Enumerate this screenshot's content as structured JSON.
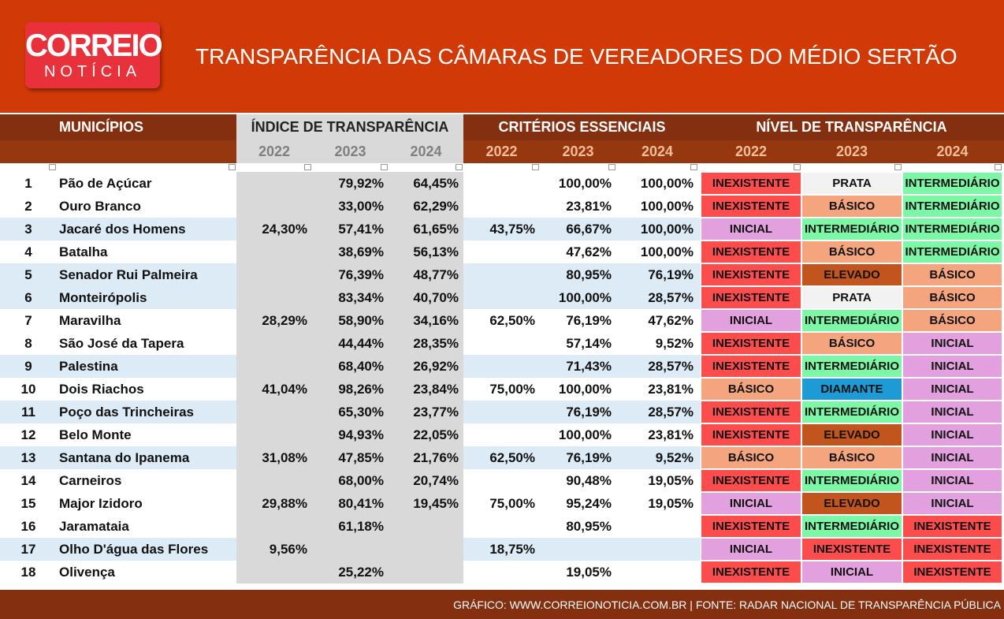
{
  "header": {
    "logo_top": "CORREIO",
    "logo_bottom": "NOTÍCIA",
    "title": "TRANSPARÊNCIA DAS CÂMARAS DE VEREADORES DO MÉDIO SERTÃO"
  },
  "table": {
    "groups": [
      "MUNICÍPIOS",
      "ÍNDICE DE TRANSPARÊNCIA",
      "CRITÉRIOS ESSENCIAIS",
      "NÍVEL DE TRANSPARÊNCIA"
    ],
    "years": [
      [
        "2022",
        "2023",
        "2024"
      ],
      [
        "2022",
        "2023",
        "2024"
      ],
      [
        "2022",
        "2023",
        "2024"
      ]
    ],
    "level_colors": {
      "INEXISTENTE": "#fc4c4c",
      "PRATA": "#f2f2f2",
      "INTERMEDIÁRIO": "#7cf7a6",
      "BÁSICO": "#f4a57e",
      "INICIAL": "#e3a0de",
      "ELEVADO": "#c2541d",
      "DIAMANTE": "#1e9ad4"
    },
    "rows": [
      {
        "shaded": false,
        "cells": [
          "1",
          "Pão de Açúcar",
          null,
          "79,92%",
          "64,45%",
          null,
          "100,00%",
          "100,00%",
          "INEXISTENTE",
          "PRATA",
          "INTERMEDIÁRIO"
        ]
      },
      {
        "shaded": false,
        "cells": [
          "2",
          "Ouro Branco",
          null,
          "33,00%",
          "62,29%",
          null,
          "23,81%",
          "100,00%",
          "INEXISTENTE",
          "BÁSICO",
          "INTERMEDIÁRIO"
        ]
      },
      {
        "shaded": true,
        "cells": [
          "3",
          "Jacaré dos Homens",
          "24,30%",
          "57,41%",
          "61,65%",
          "43,75%",
          "66,67%",
          "100,00%",
          "INICIAL",
          "INTERMEDIÁRIO",
          "INTERMEDIÁRIO"
        ]
      },
      {
        "shaded": false,
        "cells": [
          "4",
          "Batalha",
          null,
          "38,69%",
          "56,13%",
          null,
          "47,62%",
          "100,00%",
          "INEXISTENTE",
          "BÁSICO",
          "INTERMEDIÁRIO"
        ]
      },
      {
        "shaded": true,
        "cells": [
          "5",
          "Senador Rui Palmeira",
          null,
          "76,39%",
          "48,77%",
          null,
          "80,95%",
          "76,19%",
          "INEXISTENTE",
          "ELEVADO",
          "BÁSICO"
        ]
      },
      {
        "shaded": true,
        "cells": [
          "6",
          "Monteirópolis",
          null,
          "83,34%",
          "40,70%",
          null,
          "100,00%",
          "28,57%",
          "INEXISTENTE",
          "PRATA",
          "BÁSICO"
        ]
      },
      {
        "shaded": false,
        "cells": [
          "7",
          "Maravilha",
          "28,29%",
          "58,90%",
          "34,16%",
          "62,50%",
          "76,19%",
          "47,62%",
          "INICIAL",
          "INTERMEDIÁRIO",
          "BÁSICO"
        ]
      },
      {
        "shaded": false,
        "cells": [
          "8",
          "São José da Tapera",
          null,
          "44,44%",
          "28,35%",
          null,
          "57,14%",
          "9,52%",
          "INEXISTENTE",
          "BÁSICO",
          "INICIAL"
        ]
      },
      {
        "shaded": true,
        "cells": [
          "9",
          "Palestina",
          null,
          "68,40%",
          "26,92%",
          null,
          "71,43%",
          "28,57%",
          "INEXISTENTE",
          "INTERMEDIÁRIO",
          "INICIAL"
        ]
      },
      {
        "shaded": false,
        "cells": [
          "10",
          "Dois Riachos",
          "41,04%",
          "98,26%",
          "23,84%",
          "75,00%",
          "100,00%",
          "23,81%",
          "BÁSICO",
          "DIAMANTE",
          "INICIAL"
        ]
      },
      {
        "shaded": true,
        "cells": [
          "11",
          "Poço das Trincheiras",
          null,
          "65,30%",
          "23,77%",
          null,
          "76,19%",
          "28,57%",
          "INEXISTENTE",
          "INTERMEDIÁRIO",
          "INICIAL"
        ]
      },
      {
        "shaded": false,
        "cells": [
          "12",
          "Belo Monte",
          null,
          "94,93%",
          "22,05%",
          null,
          "100,00%",
          "23,81%",
          "INEXISTENTE",
          "ELEVADO",
          "INICIAL"
        ]
      },
      {
        "shaded": true,
        "cells": [
          "13",
          "Santana do Ipanema",
          "31,08%",
          "47,85%",
          "21,76%",
          "62,50%",
          "76,19%",
          "9,52%",
          "BÁSICO",
          "BÁSICO",
          "INICIAL"
        ]
      },
      {
        "shaded": false,
        "cells": [
          "14",
          "Carneiros",
          null,
          "68,00%",
          "20,74%",
          null,
          "90,48%",
          "19,05%",
          "INEXISTENTE",
          "INTERMEDIÁRIO",
          "INICIAL"
        ]
      },
      {
        "shaded": false,
        "cells": [
          "15",
          "Major Izidoro",
          "29,88%",
          "80,41%",
          "19,45%",
          "75,00%",
          "95,24%",
          "19,05%",
          "INICIAL",
          "ELEVADO",
          "INICIAL"
        ]
      },
      {
        "shaded": false,
        "cells": [
          "16",
          "Jaramataia",
          null,
          "61,18%",
          null,
          null,
          "80,95%",
          null,
          "INEXISTENTE",
          "INTERMEDIÁRIO",
          "INEXISTENTE"
        ]
      },
      {
        "shaded": true,
        "cells": [
          "17",
          "Olho D'água das Flores",
          "9,56%",
          null,
          null,
          "18,75%",
          null,
          null,
          "INICIAL",
          "INEXISTENTE",
          "INEXISTENTE"
        ]
      },
      {
        "shaded": false,
        "cells": [
          "18",
          "Olivença",
          null,
          "25,22%",
          null,
          null,
          "19,05%",
          null,
          "INEXISTENTE",
          "INICIAL",
          "INEXISTENTE"
        ]
      }
    ]
  },
  "footer": {
    "text": "GRÁFICO: WWW.CORREIONOTICIA.COM.BR | FONTE: RADAR NACIONAL DE TRANSPARÊNCIA PÚBLICA"
  }
}
